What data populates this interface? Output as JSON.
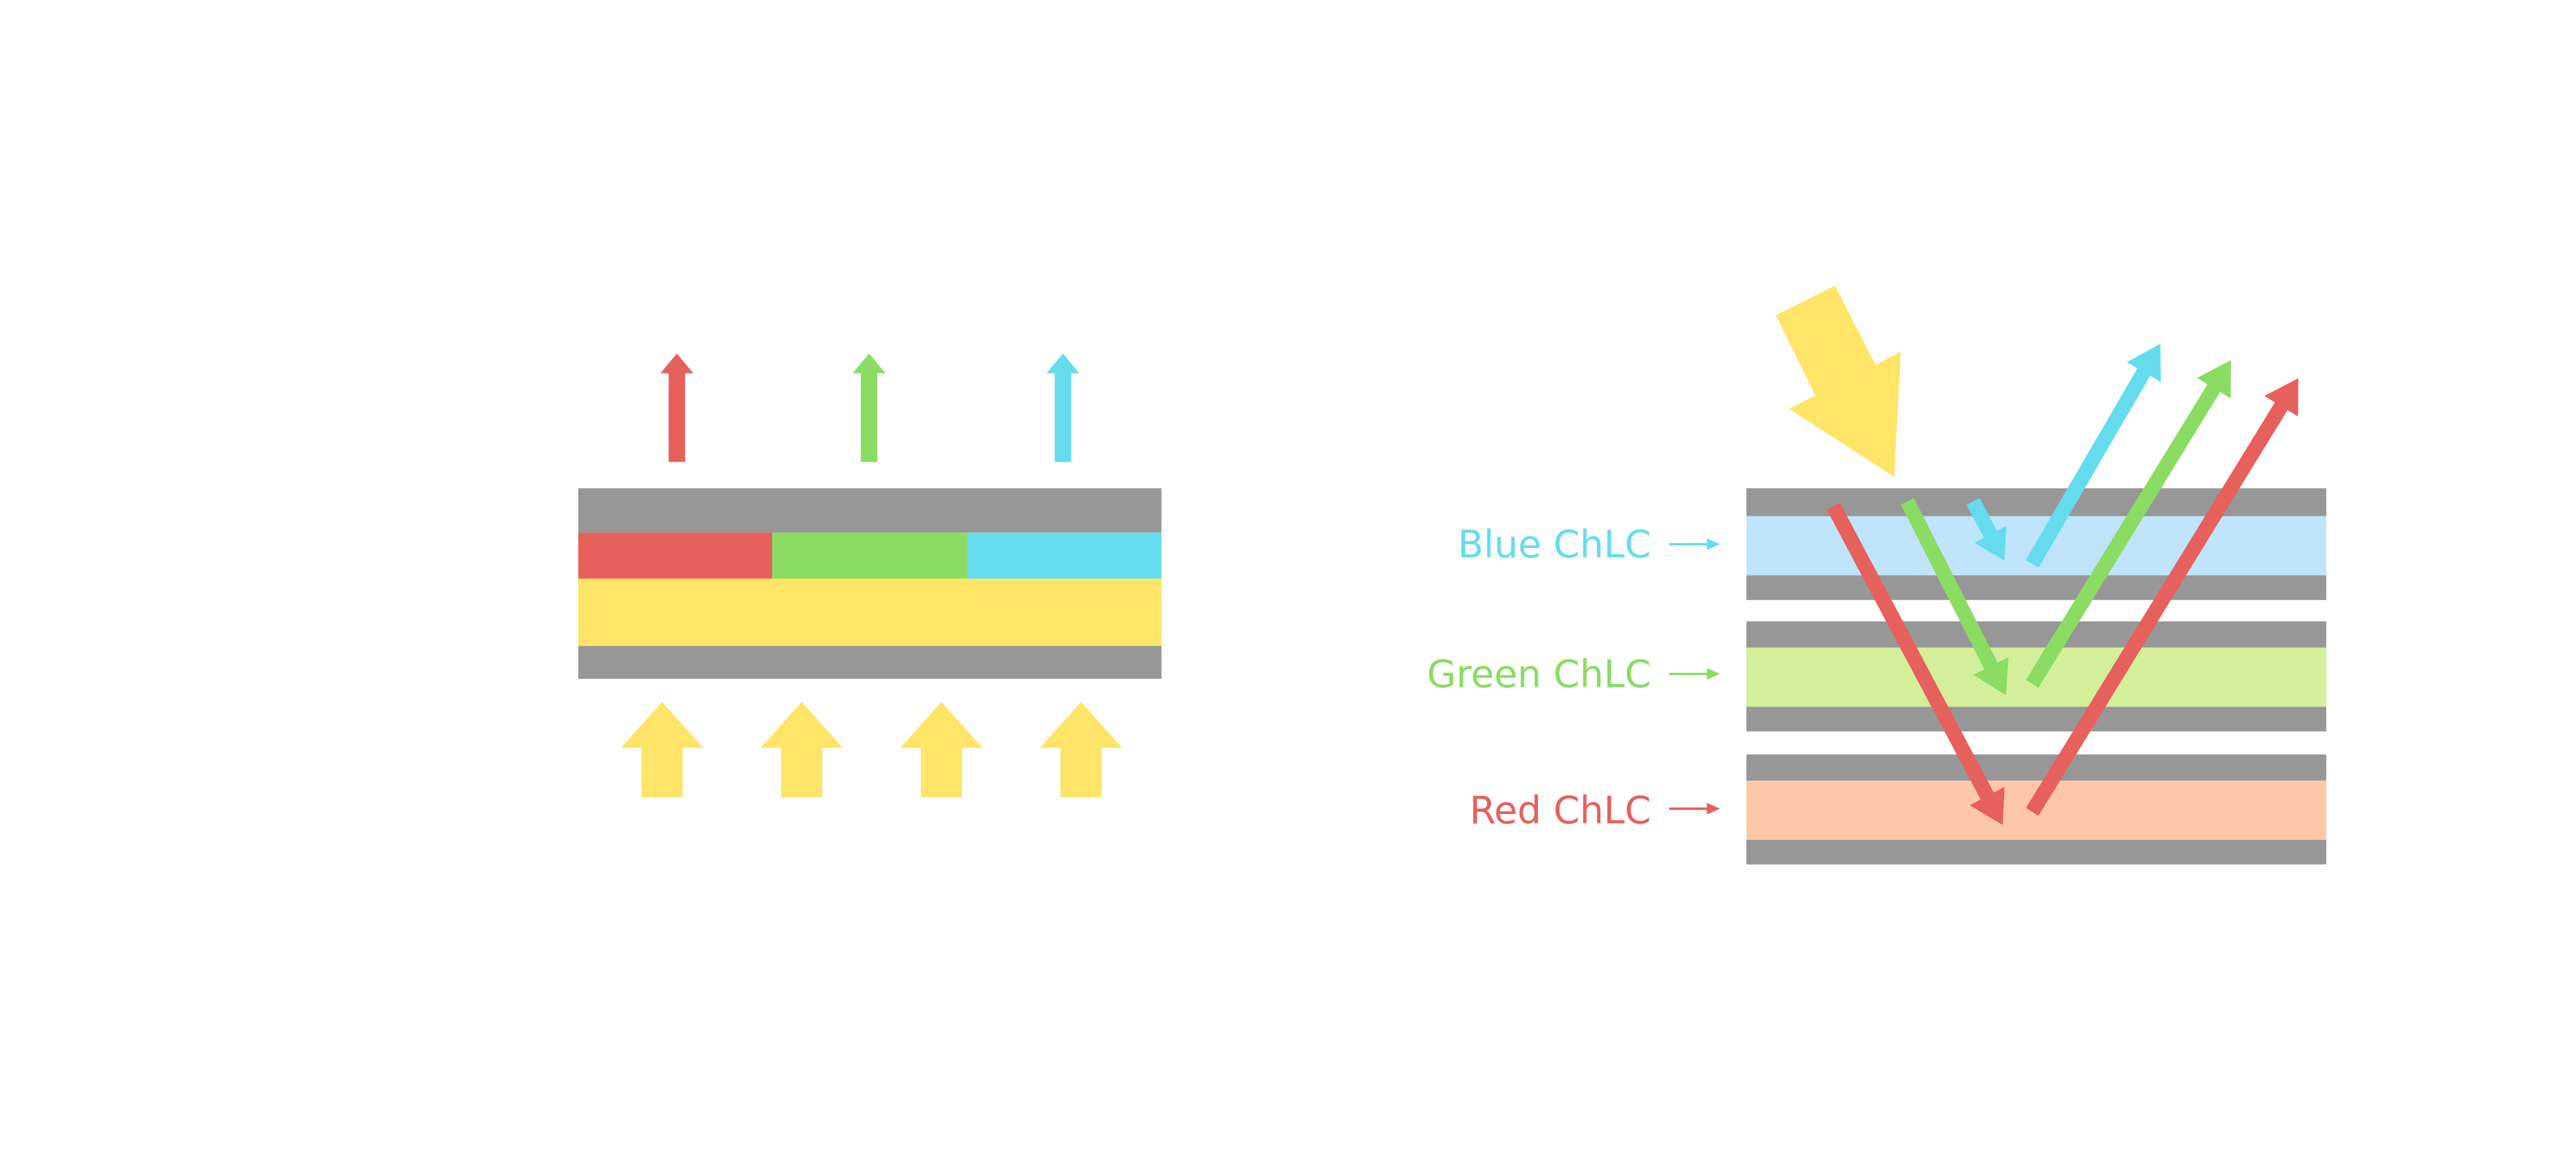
{
  "colors": {
    "substrate": "#979797",
    "red": "#e6605c",
    "green": "#8adc63",
    "blue": "#64dcee",
    "yellow": "#fee567",
    "blue_layer": "#bee5fb",
    "green_layer": "#d3ef9a",
    "red_layer": "#fdc8a8"
  },
  "labels": {
    "blue": "Blue ChLC",
    "green": "Green ChLC",
    "red": "Red ChLC"
  },
  "icons": {
    "incident_light": "lightning-arrow-icon",
    "backlight": "up-arrow-icon",
    "reflected": "arrow-icon"
  }
}
